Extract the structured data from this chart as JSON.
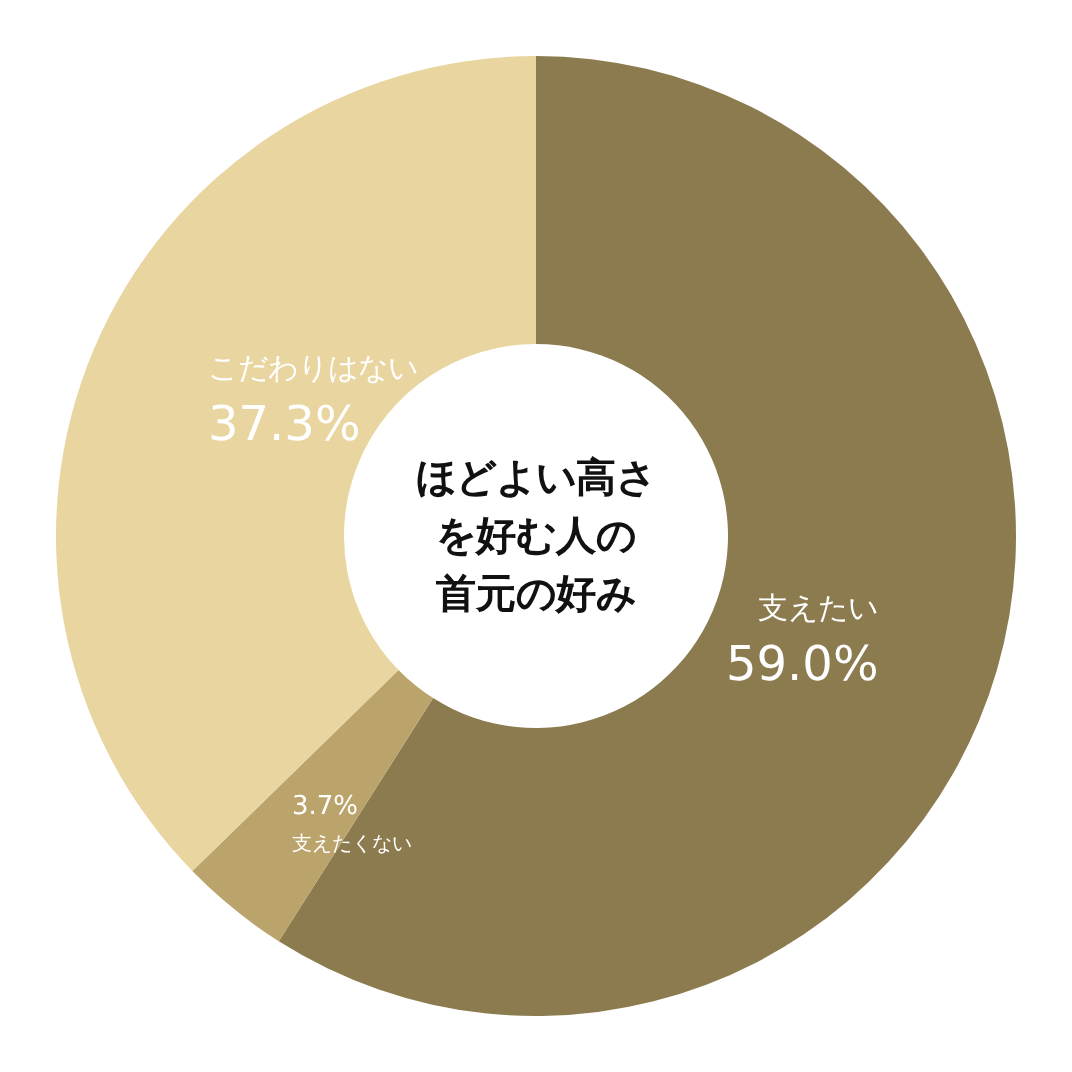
{
  "chart_data": {
    "type": "donut",
    "title": "ほどよい高さを好む人の首元の好み",
    "categories": [
      "支えたい",
      "支えたくない",
      "こだわりはない"
    ],
    "values": [
      59.0,
      3.7,
      37.3
    ],
    "value_labels": [
      "59.0%",
      "3.7%",
      "37.3%"
    ],
    "colors": [
      "#8b7b4f",
      "#bba46c",
      "#e8d5a0"
    ],
    "legend": false
  }
}
